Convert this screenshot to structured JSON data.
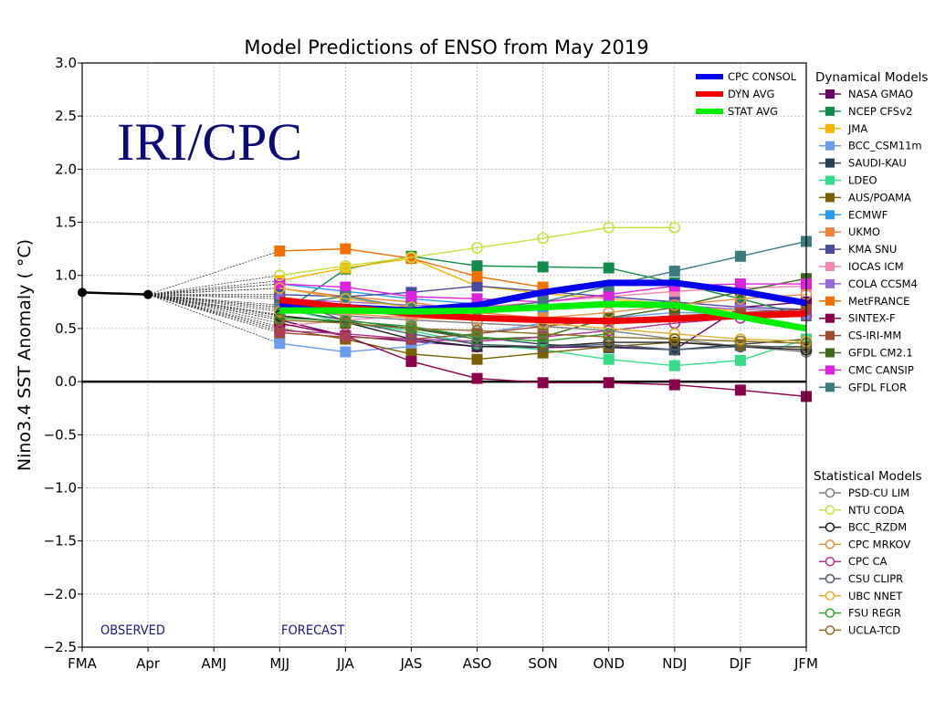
{
  "chart_data": {
    "type": "line",
    "title": "Model Predictions of ENSO from May 2019",
    "xlabel": "",
    "ylabel": "Nino3.4 SST Anomaly ( °C)",
    "ylim": [
      -2.5,
      3.0
    ],
    "yticks": [
      -2.5,
      -2.0,
      -1.5,
      -1.0,
      -0.5,
      0.0,
      0.5,
      1.0,
      1.5,
      2.0,
      2.5,
      3.0
    ],
    "ytick_labels": [
      "−2.5",
      "−2.0",
      "−1.5",
      "−1.0",
      "−0.5",
      "0.0",
      "0.5",
      "1.0",
      "1.5",
      "2.0",
      "2.5",
      "3.0"
    ],
    "categories": [
      "FMA",
      "Apr",
      "AMJ",
      "MJJ",
      "JJA",
      "JAS",
      "ASO",
      "SON",
      "OND",
      "NDJ",
      "DJF",
      "JFM"
    ],
    "grid": true,
    "watermark": "IRI/CPC",
    "annotations": {
      "observed": "OBSERVED",
      "forecast": "FORECAST"
    },
    "observed": {
      "name": "Observed",
      "x": [
        0,
        1
      ],
      "values": [
        0.84,
        0.82
      ],
      "color": "#000000"
    },
    "consensus_legend_position": "top-right",
    "consensus": [
      {
        "name": "CPC CONSOL",
        "color": "#0000ee",
        "start": 3,
        "values": [
          0.72,
          0.7,
          0.67,
          0.72,
          0.84,
          0.93,
          0.93,
          0.85,
          0.74
        ]
      },
      {
        "name": "DYN AVG",
        "color": "#ee0000",
        "start": 3,
        "values": [
          0.77,
          0.7,
          0.64,
          0.6,
          0.58,
          0.57,
          0.59,
          0.62,
          0.64
        ]
      },
      {
        "name": "STAT AVG",
        "color": "#00ee00",
        "start": 3,
        "values": [
          0.67,
          0.67,
          0.66,
          0.67,
          0.7,
          0.73,
          0.72,
          0.61,
          0.5
        ]
      }
    ],
    "dynamical_title": "Dynamical Models",
    "dynamical": [
      {
        "name": "NASA GMAO",
        "color": "#6b006b",
        "start": 3,
        "values": [
          0.58,
          0.43,
          0.38,
          0.33,
          0.32,
          0.33,
          0.3,
          0.7,
          0.75
        ]
      },
      {
        "name": "NCEP CFSv2",
        "color": "#108c4a",
        "start": 3,
        "values": [
          0.63,
          1.06,
          1.18,
          1.09,
          1.08,
          1.07,
          0.93,
          0.78,
          0.62
        ]
      },
      {
        "name": "JMA",
        "color": "#f5b800",
        "start": 3,
        "values": [
          0.95,
          1.07,
          1.16,
          0.9,
          0.83,
          0.78,
          0.73,
          0.66
        ]
      },
      {
        "name": "BCC_CSM11m",
        "color": "#6b9ceb",
        "start": 3,
        "values": [
          0.36,
          0.28,
          0.33,
          0.45,
          0.55,
          0.6,
          0.65,
          0.64,
          0.63
        ]
      },
      {
        "name": "SAUDI-KAU",
        "color": "#284050",
        "start": 3,
        "values": [
          0.68,
          0.58,
          0.5,
          0.42,
          0.35,
          0.32,
          0.3,
          0.35,
          0.4
        ]
      },
      {
        "name": "LDEO",
        "color": "#33dd88",
        "start": 3,
        "values": [
          0.7,
          0.55,
          0.48,
          0.35,
          0.3,
          0.21,
          0.15,
          0.2,
          0.4
        ]
      },
      {
        "name": "AUS/POAMA",
        "color": "#7a6000",
        "start": 3,
        "values": [
          0.5,
          0.4,
          0.26,
          0.21,
          0.27,
          0.33,
          0.37,
          0.34,
          0.32
        ]
      },
      {
        "name": "ECMWF",
        "color": "#2a9cf0",
        "start": 3,
        "values": [
          0.92,
          0.85,
          0.78,
          0.73,
          0.68
        ]
      },
      {
        "name": "UKMO",
        "color": "#f08040",
        "start": 3,
        "values": [
          0.88,
          0.8,
          0.75,
          0.65,
          0.6
        ]
      },
      {
        "name": "KMA SNU",
        "color": "#4a4aa0",
        "start": 3,
        "values": [
          0.82,
          0.8,
          0.84,
          0.9,
          0.85,
          0.8,
          0.75,
          0.7,
          0.68
        ]
      },
      {
        "name": "IOCAS ICM",
        "color": "#f088b0",
        "start": 3,
        "values": [
          0.52,
          0.58,
          0.62,
          0.7,
          0.75,
          0.8,
          0.85,
          0.88,
          0.9
        ]
      },
      {
        "name": "COLA CCSM4",
        "color": "#9966dd",
        "start": 3,
        "values": [
          0.78,
          0.75,
          0.72,
          0.7,
          0.72,
          0.75,
          0.72,
          0.68,
          0.66
        ]
      },
      {
        "name": "MetFRANCE",
        "color": "#f07000",
        "start": 3,
        "values": [
          1.23,
          1.25,
          1.16,
          0.99,
          0.89
        ]
      },
      {
        "name": "SINTEX-F",
        "color": "#8b004b",
        "start": 3,
        "values": [
          0.55,
          0.43,
          0.19,
          0.03,
          -0.01,
          -0.01,
          -0.03,
          -0.08,
          -0.14
        ]
      },
      {
        "name": "CS-IRI-MM",
        "color": "#a04a30",
        "start": 3,
        "values": [
          0.46,
          0.42,
          0.4,
          0.45,
          0.52,
          0.58,
          0.62,
          0.65,
          0.68
        ]
      },
      {
        "name": "GFDL CM2.1",
        "color": "#3a6a1a",
        "start": 3,
        "values": [
          0.62,
          0.55,
          0.5,
          0.4,
          0.42,
          0.6,
          0.7,
          0.85,
          0.97
        ]
      },
      {
        "name": "CMC CANSIP",
        "color": "#dd22dd",
        "start": 3,
        "values": [
          0.92,
          0.89,
          0.8,
          0.78,
          0.75,
          0.82,
          0.9,
          0.92,
          0.92
        ]
      },
      {
        "name": "GFDL FLOR",
        "color": "#3a7a80",
        "start": 3,
        "values": [
          0.72,
          0.8,
          0.7,
          0.68,
          0.75,
          0.9,
          1.04,
          1.18,
          1.32
        ]
      }
    ],
    "statistical_title": "Statistical Models",
    "statistical": [
      {
        "name": "PSD-CU LIM",
        "color": "#808080",
        "start": 3,
        "values": [
          0.7,
          0.62,
          0.58,
          0.55,
          0.52,
          0.48,
          0.4,
          0.33,
          0.28
        ]
      },
      {
        "name": "NTU CODA",
        "color": "#c8e040",
        "start": 3,
        "values": [
          1.0,
          1.09,
          1.17,
          1.26,
          1.35,
          1.45,
          1.45
        ]
      },
      {
        "name": "BCC_RZDM",
        "color": "#202020",
        "start": 3,
        "values": [
          0.62,
          0.56,
          0.4,
          0.33,
          0.33,
          0.37,
          0.37,
          0.33,
          0.3
        ]
      },
      {
        "name": "CPC MRKOV",
        "color": "#e89040",
        "start": 3,
        "values": [
          0.66,
          0.64,
          0.6,
          0.58,
          0.6,
          0.65,
          0.72,
          0.78,
          0.82
        ]
      },
      {
        "name": "CPC CA",
        "color": "#b03090",
        "start": 3,
        "values": [
          0.48,
          0.45,
          0.4,
          0.38,
          0.42,
          0.48,
          0.55,
          0.6,
          0.62
        ]
      },
      {
        "name": "CSU CLIPR",
        "color": "#506070",
        "start": 3,
        "values": [
          0.8,
          0.57,
          0.45,
          0.35,
          0.33,
          0.35,
          0.3,
          0.33,
          0.33
        ]
      },
      {
        "name": "UBC NNET",
        "color": "#e0b030",
        "start": 3,
        "values": [
          0.88,
          0.78,
          0.7,
          0.62,
          0.55,
          0.5,
          0.45,
          0.4,
          0.38
        ]
      },
      {
        "name": "FSU REGR",
        "color": "#30a030",
        "start": 3,
        "values": [
          0.6,
          0.57,
          0.52,
          0.42,
          0.38,
          0.45
        ]
      },
      {
        "name": "UCLA-TCD",
        "color": "#8a7020",
        "start": 3,
        "values": [
          0.58,
          0.55,
          0.5,
          0.48,
          0.45,
          0.42,
          0.4,
          0.38,
          0.36
        ]
      }
    ]
  }
}
